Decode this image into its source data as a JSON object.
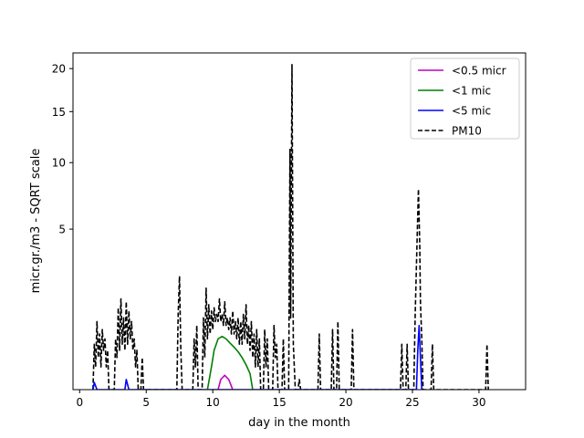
{
  "chart_data": {
    "type": "line",
    "title": "",
    "xlabel": "day in the month",
    "ylabel": "micr.gr./m3 - SQRT scale",
    "xlim": [
      -0.5,
      33.5
    ],
    "ylim": [
      0,
      22
    ],
    "y_scale": "sqrt",
    "grid": false,
    "legend_position": "top-right",
    "x_ticks": [
      0,
      5,
      10,
      15,
      20,
      25,
      30
    ],
    "x_tick_labels": [
      "0",
      "5",
      "10",
      "15",
      "20",
      "25",
      "30"
    ],
    "y_ticks": [
      5,
      10,
      15,
      20
    ],
    "y_tick_labels": [
      "5",
      "10",
      "15",
      "20"
    ],
    "series": [
      {
        "name": "<0.5 micr",
        "color": "#bf00bf",
        "dash": "solid",
        "points": [
          [
            10.4,
            0
          ],
          [
            10.6,
            0.02
          ],
          [
            10.9,
            0.04
          ],
          [
            11.2,
            0.02
          ],
          [
            11.5,
            0
          ]
        ]
      },
      {
        "name": "<1 mic",
        "color": "#008000",
        "dash": "solid",
        "points": [
          [
            9.6,
            0
          ],
          [
            9.9,
            0.1
          ],
          [
            10.1,
            0.3
          ],
          [
            10.4,
            0.5
          ],
          [
            10.7,
            0.55
          ],
          [
            11.0,
            0.5
          ],
          [
            11.3,
            0.42
          ],
          [
            11.6,
            0.35
          ],
          [
            11.9,
            0.28
          ],
          [
            12.2,
            0.2
          ],
          [
            12.5,
            0.12
          ],
          [
            12.8,
            0.05
          ],
          [
            13.0,
            0
          ]
        ]
      },
      {
        "name": "<5 mic",
        "color": "#0000ff",
        "dash": "solid",
        "points": [
          [
            1.0,
            0
          ],
          [
            1.1,
            0.01
          ],
          [
            1.3,
            0
          ],
          [
            3.4,
            0
          ],
          [
            3.5,
            0.02
          ],
          [
            3.7,
            0
          ],
          [
            25.3,
            0
          ],
          [
            25.4,
            0.3
          ],
          [
            25.5,
            0.8
          ],
          [
            25.6,
            0.2
          ],
          [
            25.7,
            0
          ]
        ]
      },
      {
        "name": "PM10",
        "color": "#000000",
        "dash": "dashed",
        "points": [
          [
            1.0,
            0
          ],
          [
            1.1,
            0.4
          ],
          [
            1.2,
            0.1
          ],
          [
            1.3,
            0.9
          ],
          [
            1.4,
            0.2
          ],
          [
            1.5,
            0.6
          ],
          [
            1.6,
            0.1
          ],
          [
            1.7,
            0.7
          ],
          [
            1.8,
            0.3
          ],
          [
            1.9,
            0.5
          ],
          [
            2.0,
            0.1
          ],
          [
            2.1,
            0.3
          ],
          [
            2.2,
            0
          ],
          [
            2.6,
            0
          ],
          [
            2.7,
            0.5
          ],
          [
            2.8,
            0.2
          ],
          [
            2.9,
            1.3
          ],
          [
            3.0,
            0.3
          ],
          [
            3.1,
            1.6
          ],
          [
            3.2,
            0.4
          ],
          [
            3.3,
            1.0
          ],
          [
            3.4,
            0.3
          ],
          [
            3.5,
            1.5
          ],
          [
            3.6,
            0.4
          ],
          [
            3.7,
            1.2
          ],
          [
            3.8,
            0.5
          ],
          [
            3.9,
            0.9
          ],
          [
            4.0,
            0.3
          ],
          [
            4.1,
            0.5
          ],
          [
            4.2,
            0.1
          ],
          [
            4.3,
            0.3
          ],
          [
            4.4,
            0
          ],
          [
            4.6,
            0
          ],
          [
            4.7,
            0.2
          ],
          [
            4.8,
            0
          ],
          [
            7.3,
            0
          ],
          [
            7.4,
            1.1
          ],
          [
            7.5,
            2.5
          ],
          [
            7.6,
            0.3
          ],
          [
            7.7,
            0
          ],
          [
            8.5,
            0
          ],
          [
            8.6,
            0.5
          ],
          [
            8.7,
            0.1
          ],
          [
            8.8,
            0.8
          ],
          [
            8.9,
            0
          ],
          [
            9.2,
            0
          ],
          [
            9.3,
            1.0
          ],
          [
            9.4,
            0.2
          ],
          [
            9.5,
            2.0
          ],
          [
            9.6,
            0.5
          ],
          [
            9.7,
            1.4
          ],
          [
            9.8,
            0.6
          ],
          [
            9.9,
            1.2
          ],
          [
            10.0,
            0.7
          ],
          [
            10.1,
            1.3
          ],
          [
            10.2,
            0.9
          ],
          [
            10.3,
            1.1
          ],
          [
            10.4,
            0.9
          ],
          [
            10.5,
            1.6
          ],
          [
            10.6,
            0.9
          ],
          [
            10.7,
            1.1
          ],
          [
            10.8,
            0.8
          ],
          [
            10.9,
            1.5
          ],
          [
            11.0,
            0.8
          ],
          [
            11.1,
            1.0
          ],
          [
            11.2,
            0.7
          ],
          [
            11.3,
            1.0
          ],
          [
            11.4,
            0.6
          ],
          [
            11.5,
            1.2
          ],
          [
            11.6,
            0.6
          ],
          [
            11.7,
            0.9
          ],
          [
            11.8,
            0.5
          ],
          [
            11.9,
            1.0
          ],
          [
            12.0,
            0.4
          ],
          [
            12.1,
            0.9
          ],
          [
            12.2,
            0.4
          ],
          [
            12.3,
            1.1
          ],
          [
            12.4,
            0.5
          ],
          [
            12.5,
            1.4
          ],
          [
            12.6,
            0.4
          ],
          [
            12.7,
            0.8
          ],
          [
            12.8,
            0.3
          ],
          [
            12.9,
            0.9
          ],
          [
            13.0,
            0.2
          ],
          [
            13.1,
            0.6
          ],
          [
            13.2,
            0.1
          ],
          [
            13.3,
            0.7
          ],
          [
            13.4,
            0.1
          ],
          [
            13.5,
            0.5
          ],
          [
            13.6,
            0
          ],
          [
            13.8,
            0
          ],
          [
            13.9,
            0.7
          ],
          [
            14.0,
            0.1
          ],
          [
            14.1,
            0.5
          ],
          [
            14.2,
            0
          ],
          [
            14.5,
            0
          ],
          [
            14.6,
            0.8
          ],
          [
            14.7,
            0.2
          ],
          [
            14.8,
            0.4
          ],
          [
            14.9,
            0
          ],
          [
            15.2,
            0
          ],
          [
            15.3,
            0.5
          ],
          [
            15.4,
            0
          ],
          [
            15.7,
            0
          ],
          [
            15.8,
            11.2
          ],
          [
            15.85,
            1.0
          ],
          [
            15.95,
            20.5
          ],
          [
            16.05,
            0.4
          ],
          [
            16.2,
            0
          ],
          [
            16.4,
            0
          ],
          [
            16.5,
            0.02
          ],
          [
            16.6,
            0
          ],
          [
            17.9,
            0
          ],
          [
            18.0,
            0.6
          ],
          [
            18.1,
            0
          ],
          [
            18.9,
            0
          ],
          [
            19.0,
            0.7
          ],
          [
            19.1,
            0
          ],
          [
            19.3,
            0
          ],
          [
            19.4,
            0.9
          ],
          [
            19.5,
            0
          ],
          [
            20.4,
            0
          ],
          [
            20.5,
            0.7
          ],
          [
            20.6,
            0
          ],
          [
            24.1,
            0
          ],
          [
            24.2,
            0.4
          ],
          [
            24.3,
            0
          ],
          [
            24.5,
            0
          ],
          [
            24.6,
            0.4
          ],
          [
            24.7,
            0
          ],
          [
            25.1,
            0
          ],
          [
            25.2,
            1.0
          ],
          [
            25.3,
            3.0
          ],
          [
            25.4,
            6.0
          ],
          [
            25.45,
            7.8
          ],
          [
            25.55,
            4.0
          ],
          [
            25.6,
            1.5
          ],
          [
            25.7,
            0.5
          ],
          [
            25.8,
            0
          ],
          [
            26.4,
            0
          ],
          [
            26.5,
            0.4
          ],
          [
            26.6,
            0
          ],
          [
            30.5,
            0
          ],
          [
            30.6,
            0.4
          ],
          [
            30.7,
            0
          ]
        ]
      }
    ]
  }
}
